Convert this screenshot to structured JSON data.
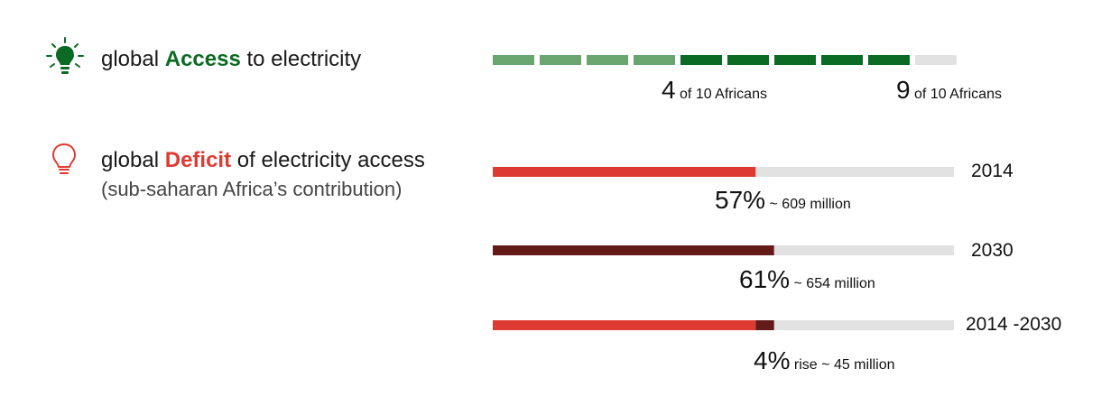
{
  "colors": {
    "access_dark": "#0b6a24",
    "access_light": "#6aa46e",
    "track": "#e2e2e2",
    "deficit_red": "#dd3b32",
    "deficit_dark": "#641a19"
  },
  "access": {
    "icon": "lightbulb-on-icon",
    "label_pre": "global ",
    "label_highlight": "Access",
    "label_post": " to electricity",
    "caption_1_num": "4",
    "caption_1_text": "of 10 Africans",
    "caption_2_num": "9",
    "caption_2_text": "of 10 Africans"
  },
  "deficit": {
    "icon": "lightbulb-outline-icon",
    "label_pre": "global ",
    "label_highlight": "Deficit",
    "label_post": " of electricity access",
    "sublabel": "(sub-saharan Africa’s contribution)",
    "rows": [
      {
        "year": "2014",
        "pct_text": "57%",
        "note": "~ 609 million"
      },
      {
        "year": "2030",
        "pct_text": "61%",
        "note": "~ 654 million"
      },
      {
        "year": "2014 -2030",
        "pct_text": "4%",
        "note": "rise ~ 45 million"
      }
    ]
  },
  "chart_data": [
    {
      "type": "bar",
      "title": "global Access to electricity",
      "unit": "of 10 Africans",
      "segments_total": 10,
      "values": [
        4,
        9
      ]
    },
    {
      "type": "bar",
      "title": "global Deficit of electricity access",
      "subtitle": "(sub-saharan Africa’s contribution)",
      "categories": [
        "2014",
        "2030",
        "2014 -2030"
      ],
      "values_percent": [
        57,
        61,
        4
      ],
      "values_million": [
        609,
        654,
        45
      ]
    }
  ]
}
